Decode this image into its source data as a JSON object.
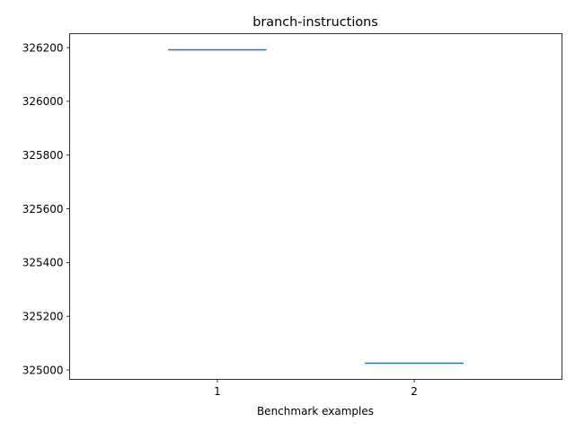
{
  "chart_data": {
    "type": "violin",
    "title": "branch-instructions",
    "xlabel": "Benchmark examples",
    "ylabel": "",
    "categories": [
      "1",
      "2"
    ],
    "values": [
      326192,
      325025
    ],
    "xlim": [
      0.25,
      2.75
    ],
    "ylim": [
      324965,
      326252
    ],
    "yticks": [
      325000,
      325200,
      325400,
      325600,
      325800,
      326000,
      326200
    ],
    "ytick_labels": [
      "325000",
      "325200",
      "325400",
      "325600",
      "325800",
      "326000",
      "326200"
    ],
    "xticks": [
      1,
      2
    ],
    "xtick_labels": [
      "1",
      "2"
    ],
    "grid": false,
    "colors": {
      "series": "#1f77b4",
      "axes": "#000000",
      "background": "#ffffff"
    }
  }
}
